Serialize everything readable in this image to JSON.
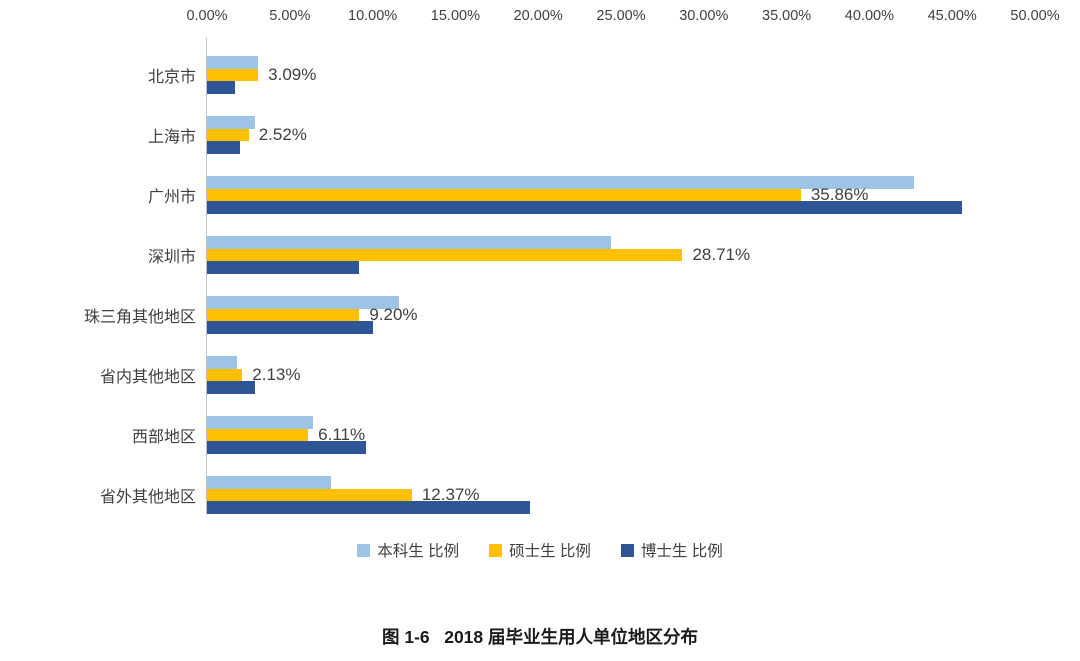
{
  "caption": "图 1-6   2018 届毕业生用人单位地区分布",
  "chart_data": {
    "type": "bar",
    "orientation": "horizontal",
    "title": "图 1-6 2018 届毕业生用人单位地区分布",
    "categories": [
      "北京市",
      "上海市",
      "广州市",
      "深圳市",
      "珠三角其他地区",
      "省内其他地区",
      "西部地区",
      "省外其他地区"
    ],
    "series": [
      {
        "id": "bachelor",
        "name": "本科生 比例",
        "color": "#9DC3E6",
        "values": [
          3.1,
          2.9,
          42.7,
          24.4,
          11.6,
          1.8,
          6.4,
          7.5
        ]
      },
      {
        "id": "master",
        "name": "硕士生 比例",
        "color": "#FFC000",
        "values": [
          3.09,
          2.52,
          35.86,
          28.71,
          9.2,
          2.13,
          6.11,
          12.37
        ],
        "data_labels": [
          "3.09%",
          "2.52%",
          "35.86%",
          "28.71%",
          "9.20%",
          "2.13%",
          "6.11%",
          "12.37%"
        ]
      },
      {
        "id": "doctor",
        "name": "博士生 比例",
        "color": "#2F5597",
        "values": [
          1.7,
          2.0,
          45.6,
          9.2,
          10.0,
          2.9,
          9.6,
          19.5
        ]
      }
    ],
    "x_axis": {
      "position": "top",
      "min": 0,
      "max": 50,
      "tick_labels": [
        "0.00%",
        "5.00%",
        "10.00%",
        "15.00%",
        "20.00%",
        "25.00%",
        "30.00%",
        "35.00%",
        "40.00%",
        "45.00%",
        "50.00%"
      ]
    },
    "grid": false,
    "legend_position": "bottom",
    "axis_line_color": "#bfbfbf",
    "label_color": "#404040"
  }
}
